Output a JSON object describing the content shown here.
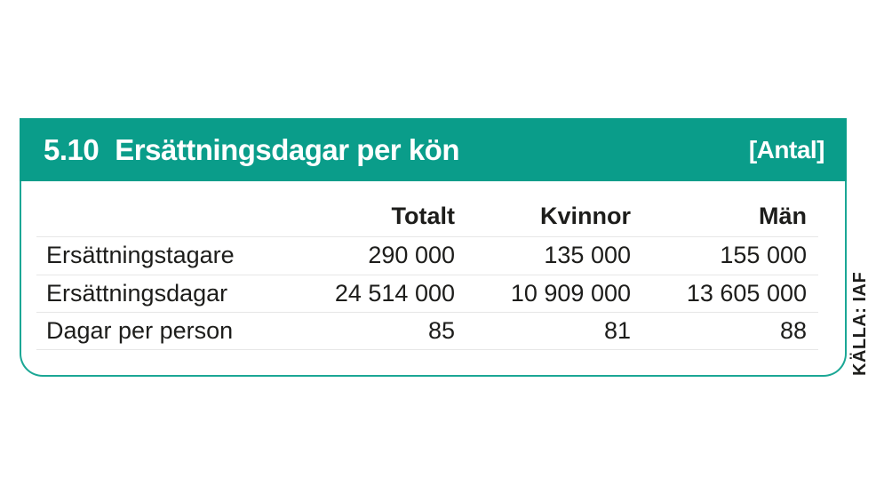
{
  "card": {
    "header": {
      "number": "5.10",
      "title": "Ersättningsdagar per kön",
      "unit": "[Antal]"
    },
    "table": {
      "columns": [
        "Totalt",
        "Kvinnor",
        "Män"
      ],
      "rows": [
        {
          "label": "Ersättningstagare",
          "values": [
            "290 000",
            "135 000",
            "155 000"
          ]
        },
        {
          "label": "Ersättningsdagar",
          "values": [
            "24 514 000",
            "10 909 000",
            "13 605 000"
          ]
        },
        {
          "label": "Dagar per person",
          "values": [
            "85",
            "81",
            "88"
          ]
        }
      ]
    }
  },
  "source_label": "KÄLLA: IAF",
  "colors": {
    "header_teal": "#0a9d8a",
    "border_teal": "#1ba795",
    "text_dark": "#1d1d1b",
    "separator_gray": "#e7e7e7",
    "header_text": "#ffffff"
  },
  "chart_data": {
    "type": "table",
    "title": "5.10 Ersättningsdagar per kön",
    "unit": "Antal",
    "columns": [
      "",
      "Totalt",
      "Kvinnor",
      "Män"
    ],
    "rows": [
      [
        "Ersättningstagare",
        290000,
        135000,
        155000
      ],
      [
        "Ersättningsdagar",
        24514000,
        10909000,
        13605000
      ],
      [
        "Dagar per person",
        85,
        81,
        88
      ]
    ],
    "source": "KÄLLA: IAF",
    "layout_hints": {
      "header_background": "#0a9d8a",
      "numeric_columns_right_aligned": true,
      "row_separators": true,
      "rounded_bottom_corners": true
    }
  }
}
